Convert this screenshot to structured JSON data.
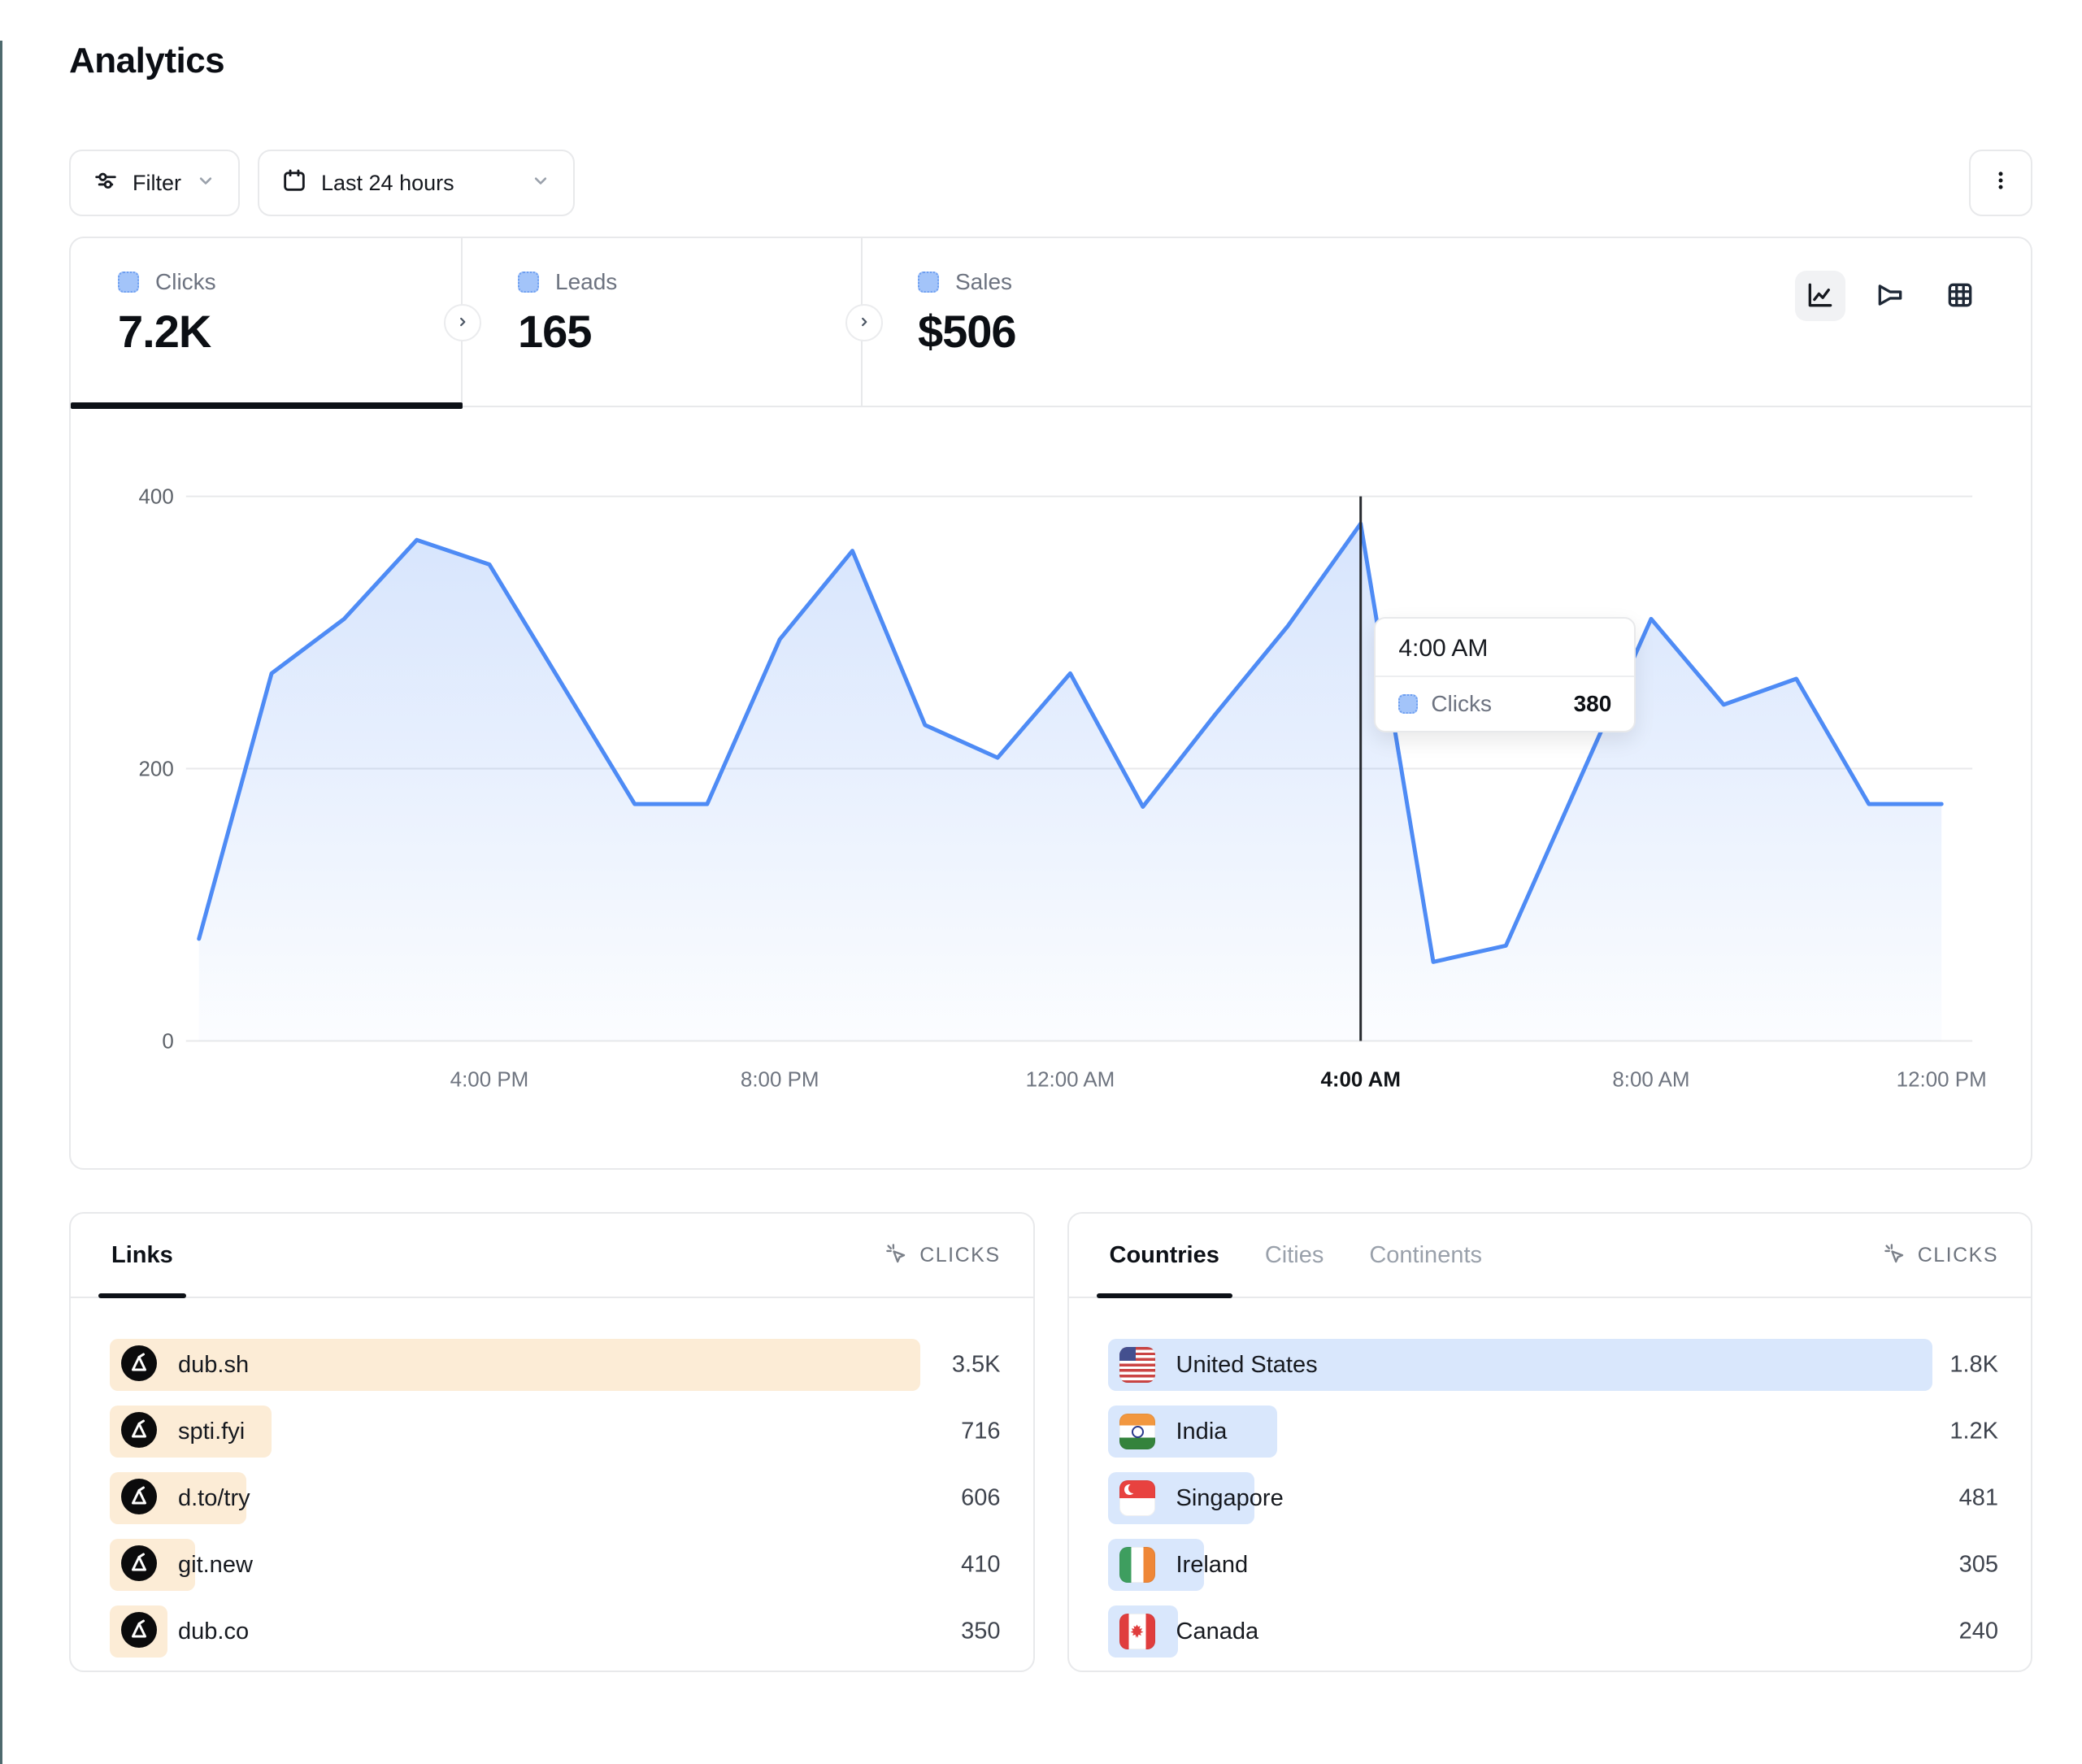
{
  "page": {
    "title": "Analytics"
  },
  "toolbar": {
    "filter_label": "Filter",
    "date_range_label": "Last 24 hours",
    "icons": [
      "filter-icon",
      "calendar-icon",
      "chevron-down-icon",
      "kebab-menu-icon"
    ]
  },
  "stats": {
    "tabs": [
      {
        "label": "Clicks",
        "value": "7.2K",
        "active": true
      },
      {
        "label": "Leads",
        "value": "165",
        "active": false
      },
      {
        "label": "Sales",
        "value": "$506",
        "active": false
      }
    ],
    "chart_views": [
      "line-chart-icon",
      "funnel-chart-icon",
      "table-view-icon"
    ],
    "active_view": "line-chart"
  },
  "chart_data": {
    "type": "area",
    "series_name": "Clicks",
    "x": [
      "12:00 PM",
      "1:00 PM",
      "2:00 PM",
      "3:00 PM",
      "4:00 PM",
      "5:00 PM",
      "6:00 PM",
      "7:00 PM",
      "8:00 PM",
      "9:00 PM",
      "10:00 PM",
      "11:00 PM",
      "12:00 AM",
      "1:00 AM",
      "2:00 AM",
      "3:00 AM",
      "4:00 AM",
      "5:00 AM",
      "6:00 AM",
      "7:00 AM",
      "8:00 AM",
      "9:00 AM",
      "10:00 AM",
      "11:00 AM",
      "12:00 PM"
    ],
    "values": [
      75,
      270,
      310,
      368,
      350,
      262,
      174,
      174,
      295,
      360,
      232,
      208,
      270,
      172,
      240,
      305,
      380,
      58,
      70,
      190,
      310,
      247,
      266,
      174,
      174
    ],
    "ylim": [
      0,
      400
    ],
    "yticks": [
      0,
      200,
      400
    ],
    "xticks": [
      {
        "label": "4:00 PM",
        "index": 4
      },
      {
        "label": "8:00 PM",
        "index": 8
      },
      {
        "label": "12:00 AM",
        "index": 12
      },
      {
        "label": "4:00 AM",
        "index": 16
      },
      {
        "label": "8:00 AM",
        "index": 20
      },
      {
        "label": "12:00 PM",
        "index": 24
      }
    ],
    "grid": true,
    "line_color": "#4e8bf5",
    "tooltip": {
      "time": "4:00 AM",
      "label": "Clicks",
      "value": "380",
      "index": 16
    }
  },
  "links_panel": {
    "tab_label": "Links",
    "metric_label": "CLICKS",
    "metric_icon": "cursor-click-icon",
    "row_icon": "dub-logo-icon",
    "bar_color": "#fcecd6",
    "rows": [
      {
        "label": "dub.sh",
        "value": "3.5K",
        "bar_pct": 91
      },
      {
        "label": "spti.fyi",
        "value": "716",
        "bar_pct": 18.2
      },
      {
        "label": "d.to/try",
        "value": "606",
        "bar_pct": 15.3
      },
      {
        "label": "git.new",
        "value": "410",
        "bar_pct": 9.6
      },
      {
        "label": "dub.co",
        "value": "350",
        "bar_pct": 6.5
      }
    ]
  },
  "countries_panel": {
    "tabs": [
      "Countries",
      "Cities",
      "Continents"
    ],
    "active_tab": "Countries",
    "metric_label": "CLICKS",
    "metric_icon": "cursor-click-icon",
    "bar_color": "#d9e7fc",
    "rows": [
      {
        "label": "United States",
        "value": "1.8K",
        "flag": "us",
        "bar_pct": 92.6
      },
      {
        "label": "India",
        "value": "1.2K",
        "flag": "in",
        "bar_pct": 19
      },
      {
        "label": "Singapore",
        "value": "481",
        "flag": "sg",
        "bar_pct": 16.5
      },
      {
        "label": "Ireland",
        "value": "305",
        "flag": "ie",
        "bar_pct": 10.8
      },
      {
        "label": "Canada",
        "value": "240",
        "flag": "ca",
        "bar_pct": 7.9
      }
    ]
  }
}
